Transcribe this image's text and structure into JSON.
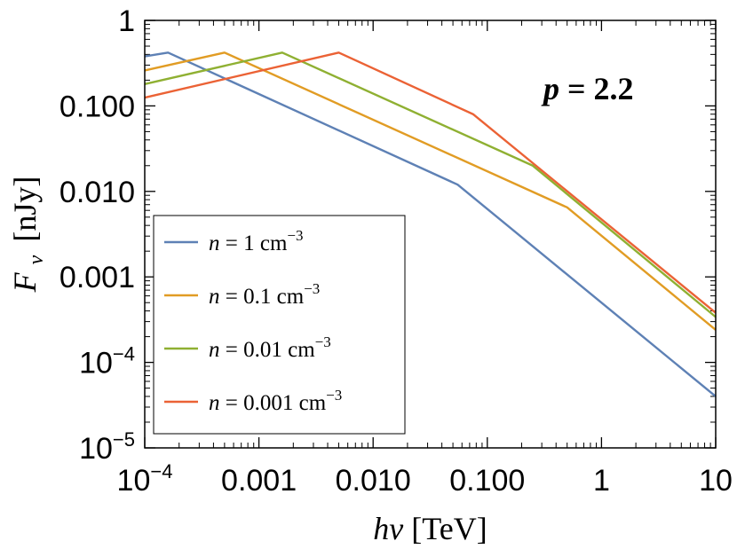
{
  "chart_data": {
    "type": "line",
    "xscale": "log",
    "yscale": "log",
    "xlim": [
      0.0001,
      10
    ],
    "ylim": [
      1e-05,
      1
    ],
    "xlabel": {
      "italic": "hν",
      "unit": "[TeV]"
    },
    "ylabel": {
      "italic": "F",
      "sub": "ν",
      "unit": "[nJy]"
    },
    "x_ticks": [
      {
        "value": 0.0001,
        "base": "10",
        "exp": "−4"
      },
      {
        "value": 0.001,
        "label": "0.001"
      },
      {
        "value": 0.01,
        "label": "0.010"
      },
      {
        "value": 0.1,
        "label": "0.100"
      },
      {
        "value": 1,
        "label": "1"
      },
      {
        "value": 10,
        "label": "10"
      }
    ],
    "y_ticks": [
      {
        "value": 1,
        "label": "1"
      },
      {
        "value": 0.1,
        "label": "0.100"
      },
      {
        "value": 0.01,
        "label": "0.010"
      },
      {
        "value": 0.001,
        "label": "0.001"
      },
      {
        "value": 0.0001,
        "base": "10",
        "exp": "−4"
      },
      {
        "value": 1e-05,
        "base": "10",
        "exp": "−5"
      }
    ],
    "annotation": {
      "italic": "p",
      "rest": " = 2.2"
    },
    "legend_position": "bottom-left",
    "series": [
      {
        "name": {
          "pre": "n",
          "mid": " = 1 cm",
          "exp": "−3"
        },
        "color": "#5e81b5",
        "points": [
          [
            0.0001,
            0.38
          ],
          [
            0.00016,
            0.42
          ],
          [
            0.055,
            0.012
          ],
          [
            10,
            4e-05
          ]
        ]
      },
      {
        "name": {
          "pre": "n",
          "mid": " = 0.1 cm",
          "exp": "−3"
        },
        "color": "#e19c24",
        "points": [
          [
            0.0001,
            0.26
          ],
          [
            0.0005,
            0.42
          ],
          [
            0.5,
            0.0065
          ],
          [
            10,
            0.00024
          ]
        ]
      },
      {
        "name": {
          "pre": "n",
          "mid": " = 0.01 cm",
          "exp": "−3"
        },
        "color": "#8fb032",
        "points": [
          [
            0.0001,
            0.18
          ],
          [
            0.0016,
            0.42
          ],
          [
            0.25,
            0.02
          ],
          [
            10,
            0.00034
          ]
        ]
      },
      {
        "name": {
          "pre": "n",
          "mid": " = 0.001 cm",
          "exp": "−3"
        },
        "color": "#eb6235",
        "points": [
          [
            0.0001,
            0.125
          ],
          [
            0.005,
            0.42
          ],
          [
            0.075,
            0.08
          ],
          [
            10,
            0.00038
          ]
        ]
      }
    ]
  }
}
